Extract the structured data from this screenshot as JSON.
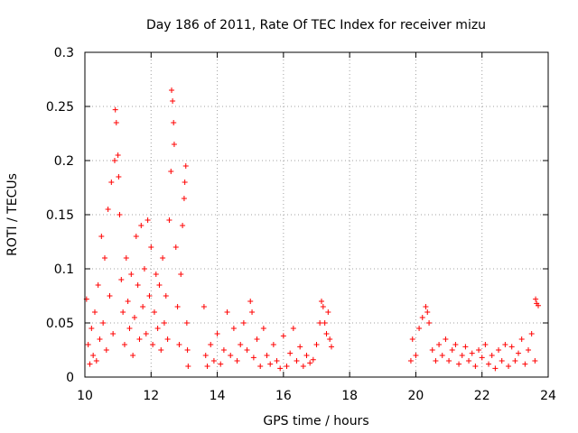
{
  "chart_data": {
    "type": "scatter",
    "title": "Day 186 of 2011, Rate Of TEC Index for receiver mizu",
    "xlabel": "GPS time / hours",
    "ylabel": "ROTI / TECUs",
    "xlim": [
      10,
      24
    ],
    "ylim": [
      0,
      0.3
    ],
    "x_ticks": [
      10,
      12,
      14,
      16,
      18,
      20,
      22,
      24
    ],
    "y_ticks": [
      0,
      0.05,
      0.1,
      0.15,
      0.2,
      0.25,
      0.3
    ],
    "x_tick_labels": [
      "10",
      "12",
      "14",
      "16",
      "18",
      "20",
      "22",
      "24"
    ],
    "y_tick_labels": [
      "0",
      "0.05",
      "0.1",
      "0.15",
      "0.2",
      "0.25",
      "0.3"
    ],
    "grid": true,
    "marker": "+",
    "color": "#ff0000",
    "series": [
      {
        "name": "ROTI",
        "points": [
          [
            10.05,
            0.072
          ],
          [
            10.1,
            0.03
          ],
          [
            10.15,
            0.012
          ],
          [
            10.2,
            0.045
          ],
          [
            10.25,
            0.02
          ],
          [
            10.3,
            0.06
          ],
          [
            10.35,
            0.015
          ],
          [
            10.4,
            0.085
          ],
          [
            10.45,
            0.035
          ],
          [
            10.5,
            0.13
          ],
          [
            10.55,
            0.05
          ],
          [
            10.6,
            0.11
          ],
          [
            10.65,
            0.025
          ],
          [
            10.7,
            0.155
          ],
          [
            10.75,
            0.075
          ],
          [
            10.8,
            0.18
          ],
          [
            10.85,
            0.04
          ],
          [
            10.9,
            0.2
          ],
          [
            10.92,
            0.247
          ],
          [
            10.95,
            0.235
          ],
          [
            11.0,
            0.205
          ],
          [
            11.02,
            0.185
          ],
          [
            11.05,
            0.15
          ],
          [
            11.1,
            0.09
          ],
          [
            11.15,
            0.06
          ],
          [
            11.2,
            0.03
          ],
          [
            11.25,
            0.11
          ],
          [
            11.3,
            0.07
          ],
          [
            11.35,
            0.045
          ],
          [
            11.4,
            0.095
          ],
          [
            11.45,
            0.02
          ],
          [
            11.5,
            0.055
          ],
          [
            11.55,
            0.13
          ],
          [
            11.6,
            0.085
          ],
          [
            11.65,
            0.035
          ],
          [
            11.7,
            0.14
          ],
          [
            11.75,
            0.065
          ],
          [
            11.8,
            0.1
          ],
          [
            11.85,
            0.04
          ],
          [
            11.9,
            0.145
          ],
          [
            11.95,
            0.075
          ],
          [
            12.0,
            0.12
          ],
          [
            12.05,
            0.03
          ],
          [
            12.1,
            0.06
          ],
          [
            12.15,
            0.095
          ],
          [
            12.2,
            0.045
          ],
          [
            12.25,
            0.085
          ],
          [
            12.3,
            0.025
          ],
          [
            12.35,
            0.11
          ],
          [
            12.4,
            0.05
          ],
          [
            12.45,
            0.075
          ],
          [
            12.5,
            0.035
          ],
          [
            12.55,
            0.145
          ],
          [
            12.6,
            0.19
          ],
          [
            12.62,
            0.265
          ],
          [
            12.65,
            0.255
          ],
          [
            12.68,
            0.235
          ],
          [
            12.7,
            0.215
          ],
          [
            12.75,
            0.12
          ],
          [
            12.8,
            0.065
          ],
          [
            12.85,
            0.03
          ],
          [
            12.9,
            0.095
          ],
          [
            12.95,
            0.14
          ],
          [
            13.0,
            0.165
          ],
          [
            13.02,
            0.18
          ],
          [
            13.05,
            0.195
          ],
          [
            13.08,
            0.05
          ],
          [
            13.1,
            0.025
          ],
          [
            13.12,
            0.01
          ],
          [
            13.6,
            0.065
          ],
          [
            13.65,
            0.02
          ],
          [
            13.7,
            0.01
          ],
          [
            13.8,
            0.03
          ],
          [
            13.9,
            0.015
          ],
          [
            14.0,
            0.04
          ],
          [
            14.1,
            0.012
          ],
          [
            14.2,
            0.025
          ],
          [
            14.3,
            0.06
          ],
          [
            14.4,
            0.02
          ],
          [
            14.5,
            0.045
          ],
          [
            14.6,
            0.015
          ],
          [
            14.7,
            0.03
          ],
          [
            14.8,
            0.05
          ],
          [
            14.9,
            0.025
          ],
          [
            15.0,
            0.07
          ],
          [
            15.05,
            0.06
          ],
          [
            15.1,
            0.018
          ],
          [
            15.2,
            0.035
          ],
          [
            15.3,
            0.01
          ],
          [
            15.4,
            0.045
          ],
          [
            15.5,
            0.02
          ],
          [
            15.6,
            0.012
          ],
          [
            15.7,
            0.03
          ],
          [
            15.8,
            0.015
          ],
          [
            15.9,
            0.008
          ],
          [
            16.0,
            0.038
          ],
          [
            16.1,
            0.01
          ],
          [
            16.2,
            0.022
          ],
          [
            16.3,
            0.045
          ],
          [
            16.4,
            0.015
          ],
          [
            16.5,
            0.028
          ],
          [
            16.6,
            0.01
          ],
          [
            16.7,
            0.02
          ],
          [
            16.8,
            0.013
          ],
          [
            16.9,
            0.016
          ],
          [
            17.0,
            0.03
          ],
          [
            17.1,
            0.05
          ],
          [
            17.15,
            0.07
          ],
          [
            17.2,
            0.065
          ],
          [
            17.25,
            0.05
          ],
          [
            17.3,
            0.04
          ],
          [
            17.35,
            0.06
          ],
          [
            17.4,
            0.035
          ],
          [
            17.45,
            0.028
          ],
          [
            19.85,
            0.015
          ],
          [
            19.9,
            0.035
          ],
          [
            20.0,
            0.02
          ],
          [
            20.1,
            0.045
          ],
          [
            20.2,
            0.055
          ],
          [
            20.3,
            0.065
          ],
          [
            20.35,
            0.06
          ],
          [
            20.4,
            0.05
          ],
          [
            20.5,
            0.025
          ],
          [
            20.6,
            0.015
          ],
          [
            20.7,
            0.03
          ],
          [
            20.8,
            0.02
          ],
          [
            20.9,
            0.035
          ],
          [
            21.0,
            0.015
          ],
          [
            21.1,
            0.025
          ],
          [
            21.2,
            0.03
          ],
          [
            21.3,
            0.012
          ],
          [
            21.4,
            0.02
          ],
          [
            21.5,
            0.028
          ],
          [
            21.6,
            0.015
          ],
          [
            21.7,
            0.022
          ],
          [
            21.8,
            0.01
          ],
          [
            21.9,
            0.025
          ],
          [
            22.0,
            0.018
          ],
          [
            22.1,
            0.03
          ],
          [
            22.2,
            0.012
          ],
          [
            22.3,
            0.02
          ],
          [
            22.4,
            0.008
          ],
          [
            22.5,
            0.025
          ],
          [
            22.6,
            0.015
          ],
          [
            22.7,
            0.03
          ],
          [
            22.8,
            0.01
          ],
          [
            22.9,
            0.028
          ],
          [
            23.0,
            0.015
          ],
          [
            23.1,
            0.022
          ],
          [
            23.2,
            0.035
          ],
          [
            23.3,
            0.012
          ],
          [
            23.4,
            0.025
          ],
          [
            23.5,
            0.04
          ],
          [
            23.6,
            0.015
          ],
          [
            23.62,
            0.072
          ],
          [
            23.65,
            0.068
          ],
          [
            23.7,
            0.066
          ]
        ]
      }
    ]
  }
}
